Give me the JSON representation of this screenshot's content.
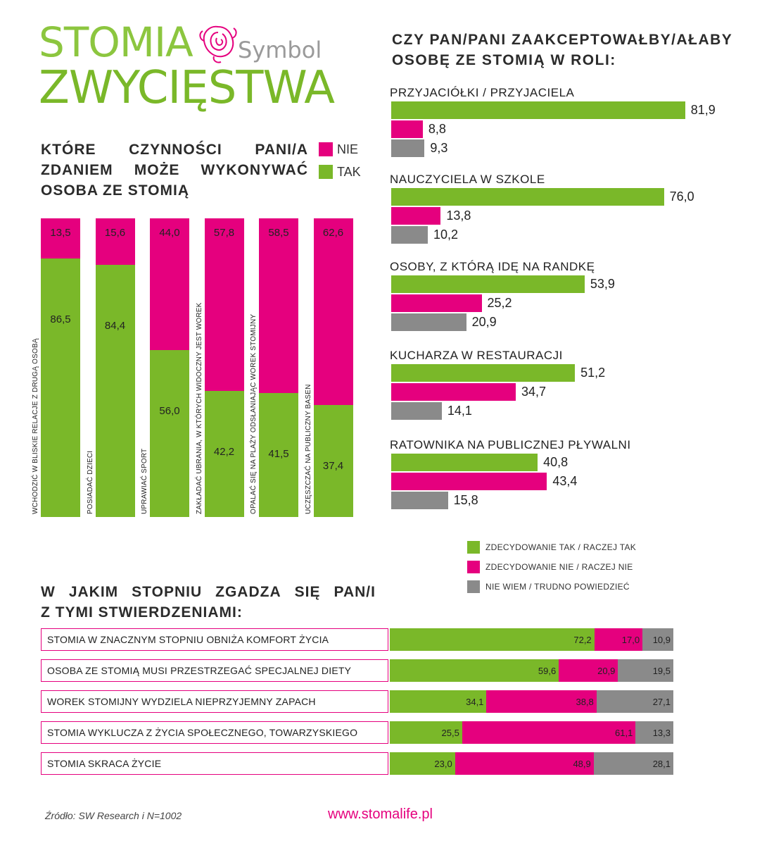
{
  "logo": {
    "line1": "STOMIA",
    "symbol": "Symbol",
    "line2": "ZWYCIĘSTWA"
  },
  "colors": {
    "green": "#7ab829",
    "pink": "#e5007e",
    "gray": "#8a8a8a"
  },
  "left_section": {
    "title": "KTÓRE CZYNNOŚCI PANI/A ZDANIEM MOŻE WYKONYWAĆ OSOBA ZE STOMIĄ",
    "title_lines": [
      "KTÓRE CZYNNOŚCI PANI/A",
      "ZDANIEM MOŻE WYKONYWAĆ",
      "OSOBA ZE STOMIĄ"
    ],
    "legend": [
      {
        "label": "NIE",
        "color": "#e5007e"
      },
      {
        "label": "TAK",
        "color": "#7ab829"
      }
    ]
  },
  "right_section": {
    "title_lines": [
      "CZY PAN/PANI ZAAKCEPTOWAŁBY/AŁABY",
      "OSOBĘ ZE STOMIĄ W ROLI:"
    ],
    "legend": [
      {
        "label": "ZDECYDOWANIE TAK / RACZEJ TAK",
        "color": "#7ab829"
      },
      {
        "label": "ZDECYDOWANIE NIE / RACZEJ NIE",
        "color": "#e5007e"
      },
      {
        "label": "NIE WIEM / TRUDNO POWIEDZIEĆ",
        "color": "#8a8a8a"
      }
    ]
  },
  "bottom_section": {
    "title_lines": [
      "W JAKIM STOPNIU ZGADZA SIĘ PAN/I",
      "Z TYMI STWIERDZENIAMI:"
    ]
  },
  "footer": {
    "source": "Źródło: SW Research i N=1002",
    "url": "www.stomalife.pl"
  },
  "chart_data": [
    {
      "type": "bar",
      "stacked": true,
      "orientation": "vertical",
      "categories": [
        "WCHODZIĆ W BLISKIE RELACJE Z DRUGĄ OSOBĄ",
        "POSIADAĆ DZIECI",
        "UPRAWIAĆ SPORT",
        "ZAKŁADAĆ UBRANIA, W KTÓRYCH WIDOCZNY JEST WOREK",
        "OPALAĆ SIĘ NA PLAŻY ODSŁANIAJĄC WOREK STOMIJNY",
        "UCZĘSZCZAĆ NA PUBLICZNY BASEN"
      ],
      "series": [
        {
          "name": "TAK",
          "values": [
            86.5,
            84.4,
            56.0,
            42.2,
            41.5,
            37.4
          ]
        },
        {
          "name": "NIE",
          "values": [
            13.5,
            15.6,
            44.0,
            57.8,
            58.5,
            62.6
          ]
        }
      ],
      "value_labels": {
        "TAK": [
          "86,5",
          "84,4",
          "56,0",
          "42,2",
          "41,5",
          "37,4"
        ],
        "NIE": [
          "13,5",
          "15,6",
          "44,0",
          "57,8",
          "58,5",
          "62,6"
        ]
      },
      "ylim": [
        0,
        100
      ]
    },
    {
      "type": "bar",
      "orientation": "horizontal",
      "categories": [
        "PRZYJACIÓŁKI / PRZYJACIELA",
        "NAUCZYCIELA W SZKOLE",
        "OSOBY, Z KTÓRĄ IDĘ NA RANDKĘ",
        "KUCHARZA W RESTAURACJI",
        "RATOWNIKA NA PUBLICZNEJ PŁYWALNI"
      ],
      "series": [
        {
          "name": "ZDECYDOWANIE TAK / RACZEJ TAK",
          "values": [
            81.9,
            76.0,
            53.9,
            51.2,
            40.8
          ]
        },
        {
          "name": "ZDECYDOWANIE NIE / RACZEJ NIE",
          "values": [
            8.8,
            13.8,
            25.2,
            34.7,
            43.4
          ]
        },
        {
          "name": "NIE WIEM / TRUDNO POWIEDZIEĆ",
          "values": [
            9.3,
            10.2,
            20.9,
            14.1,
            15.8
          ]
        }
      ],
      "value_labels": [
        [
          "81,9",
          "8,8",
          "9,3"
        ],
        [
          "76,0",
          "13,8",
          "10,2"
        ],
        [
          "53,9",
          "25,2",
          "20,9"
        ],
        [
          "51,2",
          "34,7",
          "14,1"
        ],
        [
          "40,8",
          "43,4",
          "15,8"
        ]
      ]
    },
    {
      "type": "bar",
      "stacked": true,
      "orientation": "horizontal",
      "categories": [
        "STOMIA W ZNACZNYM STOPNIU OBNIŻA KOMFORT ŻYCIA",
        "OSOBA ZE STOMIĄ MUSI PRZESTRZEGAĆ SPECJALNEJ DIETY",
        "WOREK STOMIJNY WYDZIELA NIEPRZYJEMNY ZAPACH",
        "STOMIA WYKLUCZA Z ŻYCIA SPOŁECZNEGO, TOWARZYSKIEGO",
        "STOMIA SKRACA ŻYCIE"
      ],
      "series": [
        {
          "name": "ZDECYDOWANIE TAK / RACZEJ TAK",
          "values": [
            72.2,
            59.6,
            34.1,
            25.5,
            23.0
          ]
        },
        {
          "name": "ZDECYDOWANIE NIE / RACZEJ NIE",
          "values": [
            17.0,
            20.9,
            38.8,
            61.1,
            48.9
          ]
        },
        {
          "name": "NIE WIEM / TRUDNO POWIEDZIEĆ",
          "values": [
            10.9,
            19.5,
            27.1,
            13.3,
            28.1
          ]
        }
      ],
      "value_labels": [
        [
          "72,2",
          "17,0",
          "10,9"
        ],
        [
          "59,6",
          "20,9",
          "19,5"
        ],
        [
          "34,1",
          "38,8",
          "27,1"
        ],
        [
          "25,5",
          "61,1",
          "13,3"
        ],
        [
          "23,0",
          "48,9",
          "28,1"
        ]
      ]
    }
  ]
}
